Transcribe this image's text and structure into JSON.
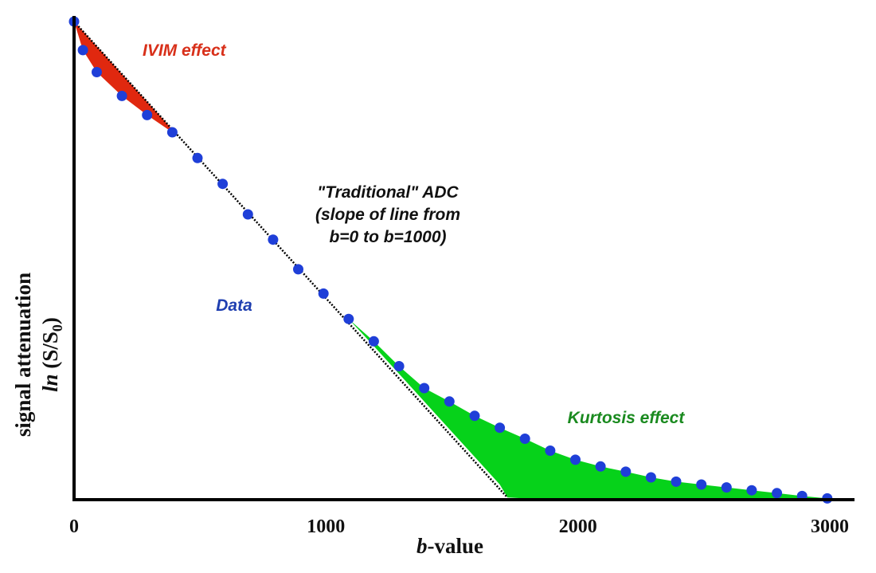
{
  "chart_data": {
    "type": "scatter",
    "xlabel": {
      "italic": "b",
      "rest": "-value"
    },
    "ylabel": {
      "line1": "signal attenuation",
      "italic": "ln",
      "rest": " (S/S",
      "sub": "0",
      "close": ")"
    },
    "xlim": [
      0,
      3100
    ],
    "ylim": [
      -1.0,
      0
    ],
    "x_ticks": [
      0,
      1000,
      2000,
      3000
    ],
    "x_tick_labels": [
      "0",
      "1000",
      "2000",
      "3000"
    ],
    "grid": false,
    "colors": {
      "data_points": "#1f3fd8",
      "ivim_fill": "#e0280f",
      "kurtosis_fill": "#06d21a",
      "axis": "#000000",
      "ivim_text": "#d8301a",
      "kurtosis_text": "#1a8a1f",
      "data_text": "#1f3fb0",
      "adc_text": "#111111"
    },
    "series": [
      {
        "kind": "points",
        "x": [
          0,
          35,
          90,
          190,
          290,
          390,
          490,
          590,
          690,
          790,
          890,
          990,
          1090,
          1190,
          1290,
          1390,
          1490,
          1590,
          1690,
          1790,
          1890,
          1990,
          2090,
          2190,
          2290,
          2390,
          2490,
          2590,
          2690,
          2790,
          2890,
          2990
        ],
        "y": [
          0,
          -0.06,
          -0.106,
          -0.156,
          -0.196,
          -0.232,
          -0.286,
          -0.34,
          -0.404,
          -0.457,
          -0.519,
          -0.57,
          -0.623,
          -0.67,
          -0.722,
          -0.768,
          -0.796,
          -0.826,
          -0.851,
          -0.874,
          -0.899,
          -0.918,
          -0.932,
          -0.943,
          -0.955,
          -0.964,
          -0.97,
          -0.976,
          -0.982,
          -0.988,
          -0.994,
          -0.999
        ]
      },
      {
        "kind": "reference-line",
        "x": [
          0,
          1720
        ],
        "y": [
          0,
          -0.997
        ]
      }
    ],
    "regions": [
      {
        "x": [
          0,
          35,
          90,
          190,
          290,
          390
        ],
        "y_top": [
          0,
          -0.02,
          -0.052,
          -0.11,
          -0.168,
          -0.226
        ],
        "y_bottom": [
          0,
          -0.06,
          -0.106,
          -0.156,
          -0.196,
          -0.232
        ]
      },
      {
        "x": [
          1090,
          1190,
          1290,
          1390,
          1490,
          1590,
          1690,
          1720,
          1790,
          1890,
          1990,
          2090,
          2190,
          2290,
          2390,
          2490,
          2590,
          2690,
          2790,
          2890,
          2990
        ],
        "y_top": [
          -0.623,
          -0.67,
          -0.722,
          -0.768,
          -0.796,
          -0.826,
          -0.851,
          -0.858,
          -0.874,
          -0.899,
          -0.918,
          -0.932,
          -0.943,
          -0.955,
          -0.964,
          -0.97,
          -0.976,
          -0.982,
          -0.988,
          -0.994,
          -0.999
        ],
        "y_bottom": [
          -0.623,
          -0.68,
          -0.738,
          -0.796,
          -0.854,
          -0.912,
          -0.97,
          -0.997,
          -0.999,
          -0.999,
          -0.999,
          -0.999,
          -0.999,
          -0.999,
          -0.999,
          -0.999,
          -0.999,
          -0.999,
          -0.999,
          -0.999,
          -0.999
        ]
      }
    ],
    "annotations": {
      "ivim": "IVIM effect",
      "adc_line1": "\"Traditional\" ADC",
      "adc_line2": "(slope of line from",
      "adc_line3": "b=0 to b=1000)",
      "data": "Data",
      "kurtosis": "Kurtosis effect"
    }
  }
}
